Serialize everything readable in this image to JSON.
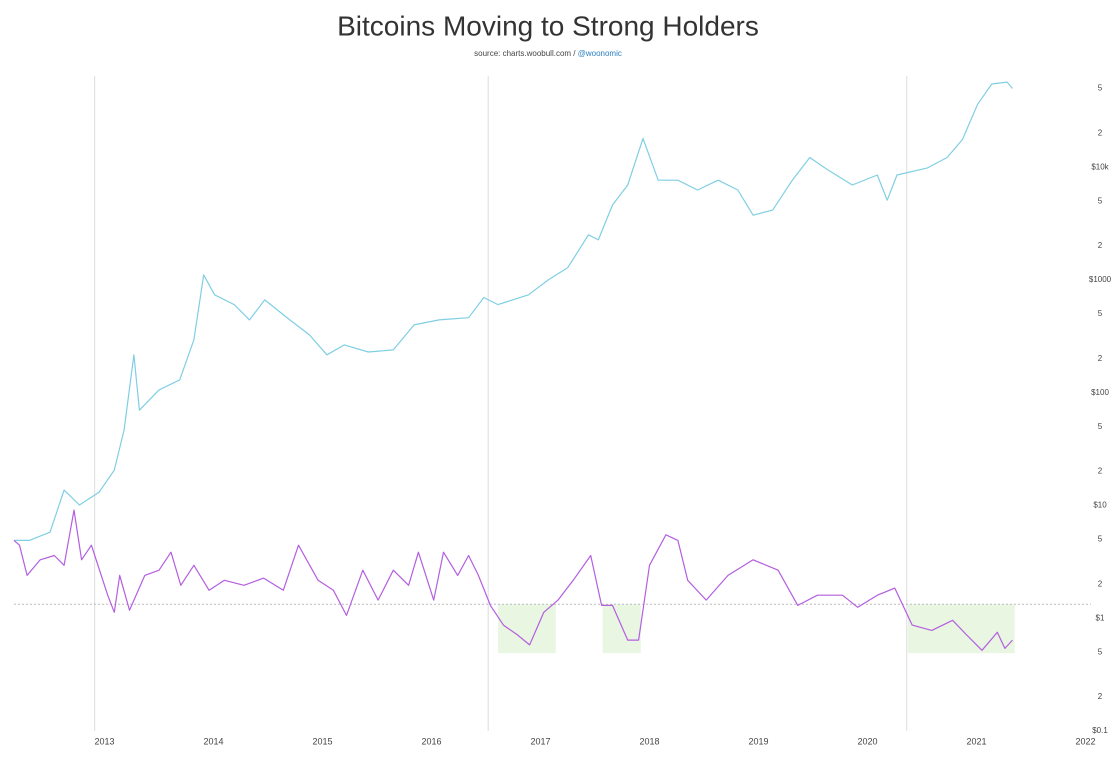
{
  "chart_data": {
    "type": "line",
    "title": "Bitcoins Moving to Strong Holders",
    "source": "source: charts.woobull.com /",
    "source_handle": "@woonomic",
    "log_y": true,
    "xlim": [
      2012.17,
      2022.05
    ],
    "xticks": [
      2013,
      2014,
      2015,
      2016,
      2017,
      2018,
      2019,
      2020,
      2021,
      2022
    ],
    "ylim": [
      0.1,
      70000
    ],
    "yticks": [
      {
        "value": 0.1,
        "label": "$0.1"
      },
      {
        "value": 0.2,
        "label": "2"
      },
      {
        "value": 0.5,
        "label": "5"
      },
      {
        "value": 1,
        "label": "$1"
      },
      2,
      5,
      {
        "value": 10,
        "label": "$10"
      },
      {
        "value": 20,
        "label": "2"
      },
      {
        "value": 50,
        "label": "5"
      },
      {
        "value": 100,
        "label": "$100"
      },
      {
        "value": 200,
        "label": "2"
      },
      {
        "value": 500,
        "label": "5"
      },
      {
        "value": 1000,
        "label": "$1000"
      },
      {
        "value": 2000,
        "label": "2"
      },
      {
        "value": 5000,
        "label": "5"
      },
      {
        "value": 10000,
        "label": "$10k"
      },
      {
        "value": 20000,
        "label": "2"
      },
      {
        "value": 50000,
        "label": "5"
      }
    ],
    "vlines": [
      2012.91,
      2016.52,
      2020.36
    ],
    "reference_line": 1.33,
    "shaded_regions": [
      {
        "x": [
          2016.61,
          2017.14
        ],
        "y": [
          0.49,
          1.33
        ]
      },
      {
        "x": [
          2017.57,
          2017.92
        ],
        "y": [
          0.49,
          1.33
        ]
      },
      {
        "x": [
          2020.37,
          2021.35
        ],
        "y": [
          0.49,
          1.33
        ]
      }
    ],
    "shade_color": "#e8f6e2",
    "series": [
      {
        "color": "#7fcfe3",
        "x": [
          2012.17,
          2012.31,
          2012.5,
          2012.63,
          2012.77,
          2012.95,
          2013.09,
          2013.18,
          2013.27,
          2013.32,
          2013.5,
          2013.69,
          2013.82,
          2013.91,
          2014.01,
          2014.19,
          2014.33,
          2014.47,
          2014.7,
          2014.88,
          2015.04,
          2015.2,
          2015.42,
          2015.65,
          2015.84,
          2016.07,
          2016.34,
          2016.48,
          2016.61,
          2016.89,
          2017.07,
          2017.25,
          2017.44,
          2017.53,
          2017.66,
          2017.8,
          2017.94,
          2018.08,
          2018.26,
          2018.44,
          2018.63,
          2018.81,
          2018.95,
          2019.13,
          2019.31,
          2019.47,
          2019.63,
          2019.86,
          2020.09,
          2020.18,
          2020.27,
          2020.55,
          2020.73,
          2020.87,
          2021.01,
          2021.14,
          2021.28,
          2021.33
        ],
        "values": [
          4.9,
          4.9,
          5.8,
          13.7,
          10.1,
          13.1,
          20.6,
          46.8,
          217,
          70,
          106,
          130,
          295,
          1110,
          740,
          605,
          443,
          666,
          443,
          326,
          217,
          266,
          230,
          240,
          400,
          443,
          463,
          700,
          605,
          740,
          1000,
          1290,
          2520,
          2270,
          4630,
          6960,
          18000,
          7680,
          7680,
          6290,
          7680,
          6290,
          3760,
          4170,
          7680,
          12200,
          9560,
          6960,
          8540,
          5100,
          8540,
          9880,
          12200,
          17600,
          36200,
          54800,
          57000,
          50000
        ]
      },
      {
        "color": "#b45ee0",
        "x": [
          2012.17,
          2012.22,
          2012.29,
          2012.41,
          2012.54,
          2012.63,
          2012.72,
          2012.79,
          2012.88,
          2013.03,
          2013.09,
          2013.14,
          2013.23,
          2013.37,
          2013.5,
          2013.61,
          2013.7,
          2013.82,
          2013.96,
          2014.1,
          2014.28,
          2014.46,
          2014.64,
          2014.78,
          2014.96,
          2015.1,
          2015.22,
          2015.37,
          2015.51,
          2015.65,
          2015.79,
          2015.88,
          2016.02,
          2016.11,
          2016.24,
          2016.34,
          2016.43,
          2016.54,
          2016.66,
          2016.79,
          2016.9,
          2017.03,
          2017.16,
          2017.3,
          2017.46,
          2017.56,
          2017.66,
          2017.8,
          2017.9,
          2018.0,
          2018.15,
          2018.26,
          2018.35,
          2018.52,
          2018.72,
          2018.95,
          2019.18,
          2019.36,
          2019.54,
          2019.77,
          2019.91,
          2020.09,
          2020.25,
          2020.41,
          2020.59,
          2020.78,
          2020.91,
          2021.05,
          2021.19,
          2021.26,
          2021.33
        ],
        "values": [
          4.9,
          4.45,
          2.4,
          3.3,
          3.6,
          2.95,
          9.1,
          3.3,
          4.45,
          1.6,
          1.13,
          2.4,
          1.18,
          2.4,
          2.67,
          3.85,
          1.96,
          2.95,
          1.77,
          2.17,
          1.96,
          2.27,
          1.77,
          4.45,
          2.17,
          1.77,
          1.06,
          2.67,
          1.45,
          2.67,
          1.96,
          3.85,
          1.45,
          3.85,
          2.4,
          3.6,
          2.4,
          1.3,
          0.87,
          0.71,
          0.58,
          1.13,
          1.45,
          2.17,
          3.6,
          1.3,
          1.3,
          0.64,
          0.64,
          2.95,
          5.5,
          4.9,
          2.17,
          1.45,
          2.4,
          3.3,
          2.67,
          1.3,
          1.6,
          1.6,
          1.25,
          1.6,
          1.85,
          0.87,
          0.78,
          0.96,
          0.71,
          0.52,
          0.75,
          0.54,
          0.64
        ]
      }
    ]
  }
}
